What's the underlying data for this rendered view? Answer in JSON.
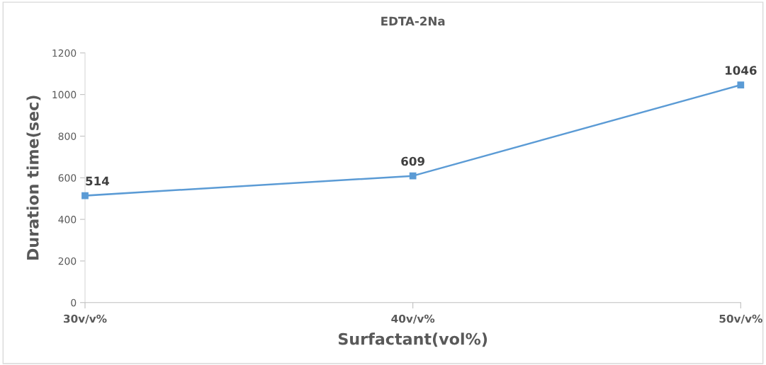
{
  "chart_data": {
    "type": "line",
    "title": "EDTA-2Na",
    "xlabel": "Surfactant(vol%)",
    "ylabel": "Duration time(sec)",
    "categories": [
      "30v/v%",
      "40v/v%",
      "50v/v%"
    ],
    "series": [
      {
        "color": "#5b9bd5",
        "values": [
          514,
          609,
          1046
        ]
      }
    ],
    "ylim": [
      0,
      1200
    ],
    "yticks": [
      0,
      200,
      400,
      600,
      800,
      1000,
      1200
    ],
    "grid": false,
    "legend": false,
    "marker": "square",
    "line_style": "solid",
    "data_labels": true
  }
}
